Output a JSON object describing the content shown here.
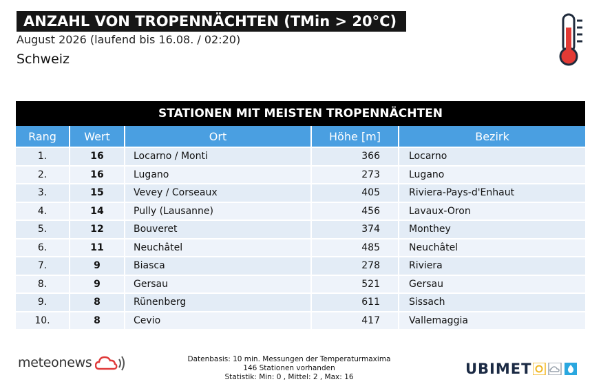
{
  "header": {
    "title": "ANZAHL VON TROPENNÄCHTEN (TMin > 20°C)",
    "subtitle": "August 2026 (laufend bis 16.08. / 02:20)",
    "region": "Schweiz"
  },
  "table": {
    "title": "STATIONEN MIT MEISTEN TROPENNÄCHTEN",
    "columns": [
      "Rang",
      "Wert",
      "Ort",
      "Höhe [m]",
      "Bezirk"
    ],
    "rows": [
      [
        "1.",
        "16",
        "Locarno / Monti",
        "366",
        "Locarno"
      ],
      [
        "2.",
        "16",
        "Lugano",
        "273",
        "Lugano"
      ],
      [
        "3.",
        "15",
        "Vevey / Corseaux",
        "405",
        "Riviera-Pays-d'Enhaut"
      ],
      [
        "4.",
        "14",
        "Pully (Lausanne)",
        "456",
        "Lavaux-Oron"
      ],
      [
        "5.",
        "12",
        "Bouveret",
        "374",
        "Monthey"
      ],
      [
        "6.",
        "11",
        "Neuchâtel",
        "485",
        "Neuchâtel"
      ],
      [
        "7.",
        "9",
        "Biasca",
        "278",
        "Riviera"
      ],
      [
        "8.",
        "9",
        "Gersau",
        "521",
        "Gersau"
      ],
      [
        "9.",
        "8",
        "Rünenberg",
        "611",
        "Sissach"
      ],
      [
        "10.",
        "8",
        "Cevio",
        "417",
        "Vallemaggia"
      ]
    ]
  },
  "footer": {
    "logo_left": "meteonews",
    "note_line1": "Datenbasis: 10 min. Messungen der Temperaturmaxima",
    "note_line2": "146 Stationen vorhanden",
    "note_line3": "Statistik: Min: 0 , Mittel: 2 , Max: 16",
    "logo_right": "UBIMET"
  },
  "icons": {
    "thermometer": "thermometer-icon",
    "meteonews_cloud": "cloud-signal-icon",
    "ubimet_weather": [
      "sun-icon",
      "cloud-icon",
      "drop-icon"
    ]
  },
  "colors": {
    "title_bg": "#161616",
    "table_header_bg": "#000000",
    "column_header_bg": "#4a9fe1",
    "row_bg_a": "#e3ecf6",
    "row_bg_b": "#eef3fa",
    "thermometer_red": "#e23a35",
    "meteonews_red": "#e03a3a",
    "ubimet_dark": "#1b2a44",
    "ubimet_sun": "#f2b721",
    "ubimet_drop": "#2aa7df"
  }
}
